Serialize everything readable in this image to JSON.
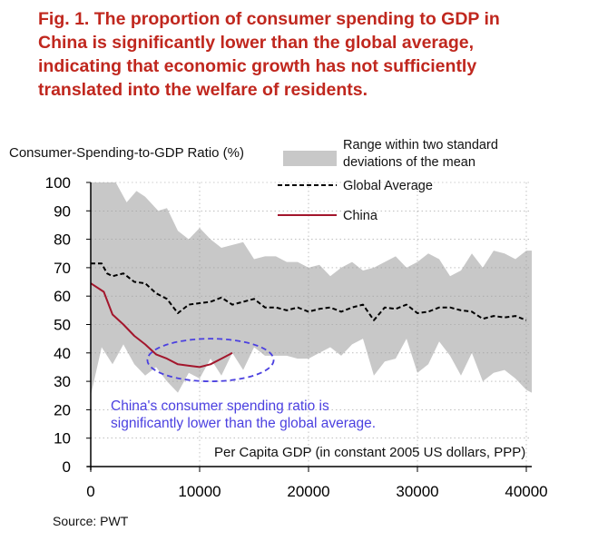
{
  "figure": {
    "title_lines": [
      "Fig. 1. The proportion of consumer spending to GDP in",
      "China is significantly lower than the global average,",
      "indicating that economic growth has not sufficiently",
      "translated into the welfare of residents."
    ],
    "source": "Source: PWT"
  },
  "chart_data": {
    "type": "line",
    "ylabel": "Consumer-Spending-to-GDP Ratio (%)",
    "xlabel": "Per Capita GDP (in constant 2005 US dollars, PPP)",
    "xlim": [
      0,
      40500
    ],
    "ylim": [
      0,
      100
    ],
    "x_ticks": [
      0,
      10000,
      20000,
      30000,
      40000
    ],
    "y_ticks": [
      0,
      10,
      20,
      30,
      40,
      50,
      60,
      70,
      80,
      90,
      100
    ],
    "legend": {
      "placement": "top-right",
      "items": [
        {
          "label_lines": [
            "Range within two standard",
            "deviations of the mean"
          ],
          "kind": "band",
          "color": "#c8c8c8"
        },
        {
          "label_lines": [
            "Global Average"
          ],
          "kind": "dashed",
          "color": "#000000"
        },
        {
          "label_lines": [
            "China"
          ],
          "kind": "solid",
          "color": "#a3162c"
        }
      ]
    },
    "band": {
      "name": "Range within two standard deviations of the mean",
      "color": "#c8c8c8",
      "upper": [
        [
          0,
          100
        ],
        [
          2300,
          100
        ],
        [
          3300,
          93
        ],
        [
          4200,
          97
        ],
        [
          5000,
          95
        ],
        [
          6200,
          90
        ],
        [
          7000,
          91
        ],
        [
          8000,
          83
        ],
        [
          9000,
          80
        ],
        [
          10000,
          84
        ],
        [
          11000,
          80
        ],
        [
          12000,
          77
        ],
        [
          13000,
          78
        ],
        [
          14000,
          79
        ],
        [
          15000,
          73
        ],
        [
          16000,
          74
        ],
        [
          17000,
          74
        ],
        [
          18000,
          72
        ],
        [
          19000,
          72
        ],
        [
          20000,
          70
        ],
        [
          21000,
          71
        ],
        [
          22000,
          67
        ],
        [
          23000,
          70
        ],
        [
          24000,
          72
        ],
        [
          25000,
          69
        ],
        [
          26000,
          70
        ],
        [
          27000,
          72
        ],
        [
          28000,
          74
        ],
        [
          29000,
          70
        ],
        [
          30000,
          72
        ],
        [
          31000,
          75
        ],
        [
          32000,
          73
        ],
        [
          33000,
          67
        ],
        [
          34000,
          69
        ],
        [
          35000,
          75
        ],
        [
          36000,
          70
        ],
        [
          37000,
          76
        ],
        [
          38000,
          75
        ],
        [
          39000,
          73
        ],
        [
          40000,
          76
        ],
        [
          40500,
          76
        ]
      ],
      "lower": [
        [
          0,
          25
        ],
        [
          1000,
          42
        ],
        [
          2000,
          36
        ],
        [
          3000,
          43
        ],
        [
          4000,
          36
        ],
        [
          5000,
          32
        ],
        [
          6000,
          35
        ],
        [
          7000,
          30
        ],
        [
          8000,
          26
        ],
        [
          9000,
          33
        ],
        [
          10000,
          31
        ],
        [
          11000,
          38
        ],
        [
          12000,
          32
        ],
        [
          13000,
          40
        ],
        [
          14000,
          34
        ],
        [
          15000,
          42
        ],
        [
          16000,
          39
        ],
        [
          17000,
          39
        ],
        [
          18000,
          39
        ],
        [
          19000,
          38
        ],
        [
          20000,
          38
        ],
        [
          21000,
          40
        ],
        [
          22000,
          42
        ],
        [
          23000,
          39
        ],
        [
          24000,
          43
        ],
        [
          25000,
          45
        ],
        [
          26000,
          32
        ],
        [
          27000,
          37
        ],
        [
          28000,
          38
        ],
        [
          29000,
          45
        ],
        [
          30000,
          33
        ],
        [
          31000,
          36
        ],
        [
          32000,
          44
        ],
        [
          33000,
          39
        ],
        [
          34000,
          32
        ],
        [
          35000,
          40
        ],
        [
          36000,
          30
        ],
        [
          37000,
          33
        ],
        [
          38000,
          34
        ],
        [
          39000,
          31
        ],
        [
          40000,
          27
        ],
        [
          40500,
          26
        ]
      ]
    },
    "series": [
      {
        "name": "Global Average",
        "style": "dashed",
        "color": "#000000",
        "points": [
          [
            0,
            71.5
          ],
          [
            1000,
            71.5
          ],
          [
            1500,
            68
          ],
          [
            2000,
            67
          ],
          [
            3000,
            68
          ],
          [
            4000,
            65
          ],
          [
            5000,
            64.5
          ],
          [
            6000,
            61
          ],
          [
            7000,
            59
          ],
          [
            8000,
            54
          ],
          [
            9000,
            57
          ],
          [
            10000,
            57.5
          ],
          [
            11000,
            58
          ],
          [
            12000,
            59.5
          ],
          [
            13000,
            57
          ],
          [
            14000,
            58
          ],
          [
            15000,
            59
          ],
          [
            16000,
            56
          ],
          [
            17000,
            56
          ],
          [
            18000,
            55
          ],
          [
            19000,
            56
          ],
          [
            20000,
            54.5
          ],
          [
            21000,
            55.5
          ],
          [
            22000,
            56
          ],
          [
            23000,
            54.5
          ],
          [
            24000,
            56
          ],
          [
            25000,
            57
          ],
          [
            26000,
            51.5
          ],
          [
            27000,
            56
          ],
          [
            28000,
            55.5
          ],
          [
            29000,
            57
          ],
          [
            30000,
            54
          ],
          [
            31000,
            54.5
          ],
          [
            32000,
            56
          ],
          [
            33000,
            56
          ],
          [
            34000,
            55
          ],
          [
            35000,
            54.5
          ],
          [
            36000,
            52
          ],
          [
            37000,
            53
          ],
          [
            38000,
            52.5
          ],
          [
            39000,
            53
          ],
          [
            40000,
            51.5
          ]
        ]
      },
      {
        "name": "China",
        "style": "solid",
        "color": "#a3162c",
        "points": [
          [
            0,
            64.5
          ],
          [
            1200,
            61.5
          ],
          [
            2000,
            53.5
          ],
          [
            3000,
            50
          ],
          [
            4000,
            46
          ],
          [
            5000,
            43
          ],
          [
            6000,
            39.5
          ],
          [
            7000,
            38
          ],
          [
            8000,
            36
          ],
          [
            9000,
            35.5
          ],
          [
            10000,
            35
          ],
          [
            11000,
            36
          ],
          [
            12000,
            38
          ],
          [
            13000,
            40
          ]
        ]
      }
    ],
    "annotation": {
      "lines": [
        "China's consumer spending ratio is",
        "significantly lower than the global average."
      ],
      "color": "#4b40e0",
      "ellipse_center": [
        11000,
        37.5
      ],
      "ellipse_radius": [
        5800,
        7.5
      ]
    }
  }
}
